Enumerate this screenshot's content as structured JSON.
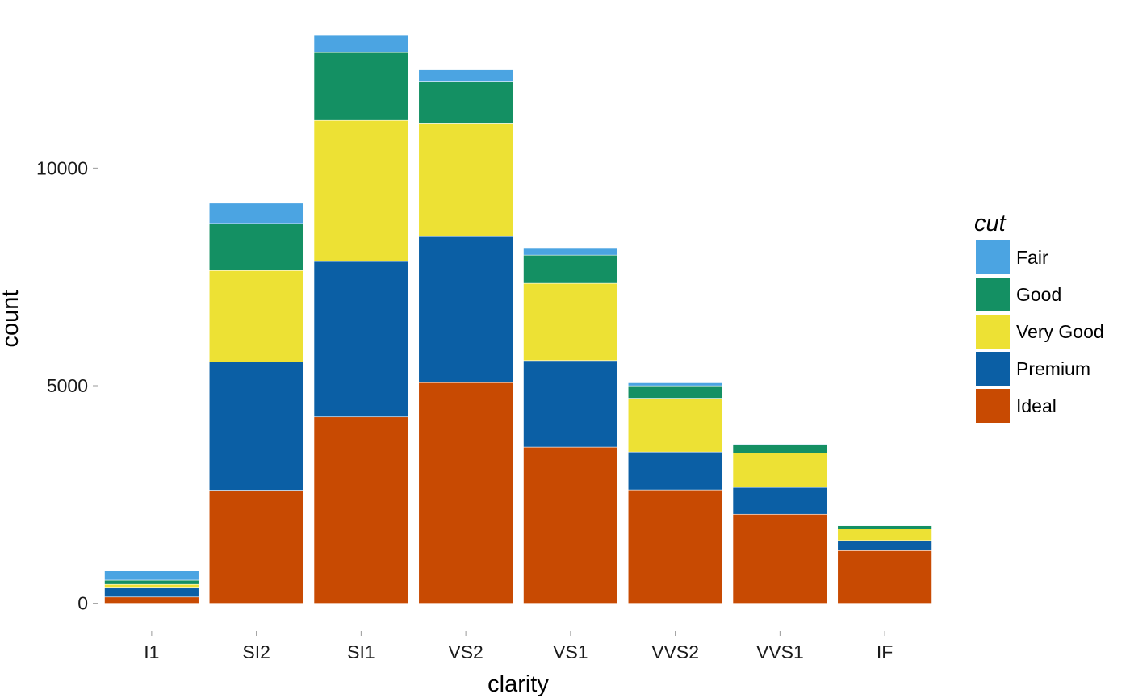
{
  "chart_data": {
    "type": "bar",
    "stacked": true,
    "title": "",
    "xlabel": "clarity",
    "ylabel": "count",
    "ylim": [
      -600,
      13400
    ],
    "yticks": [
      0,
      5000,
      10000
    ],
    "ytick_labels": [
      "0",
      "5000",
      "10000"
    ],
    "categories": [
      "I1",
      "SI2",
      "SI1",
      "VS2",
      "VS1",
      "VVS2",
      "VVS1",
      "IF"
    ],
    "series": [
      {
        "name": "Ideal",
        "color": "#C84A02",
        "values": [
          146,
          2598,
          4282,
          5071,
          3589,
          2606,
          2047,
          1212
        ]
      },
      {
        "name": "Premium",
        "color": "#0B5FA5",
        "values": [
          205,
          2949,
          3575,
          3357,
          1989,
          870,
          616,
          230
        ]
      },
      {
        "name": "Very Good",
        "color": "#EDE134",
        "values": [
          84,
          2100,
          3240,
          2591,
          1775,
          1235,
          789,
          268
        ]
      },
      {
        "name": "Good",
        "color": "#149063",
        "values": [
          96,
          1081,
          1560,
          978,
          648,
          286,
          186,
          71
        ]
      },
      {
        "name": "Fair",
        "color": "#4BA4E2",
        "values": [
          210,
          466,
          408,
          261,
          170,
          69,
          17,
          9
        ]
      }
    ],
    "legend": {
      "title": "cut",
      "position": "right",
      "order": [
        "Fair",
        "Good",
        "Very Good",
        "Premium",
        "Ideal"
      ]
    },
    "grid": false
  }
}
